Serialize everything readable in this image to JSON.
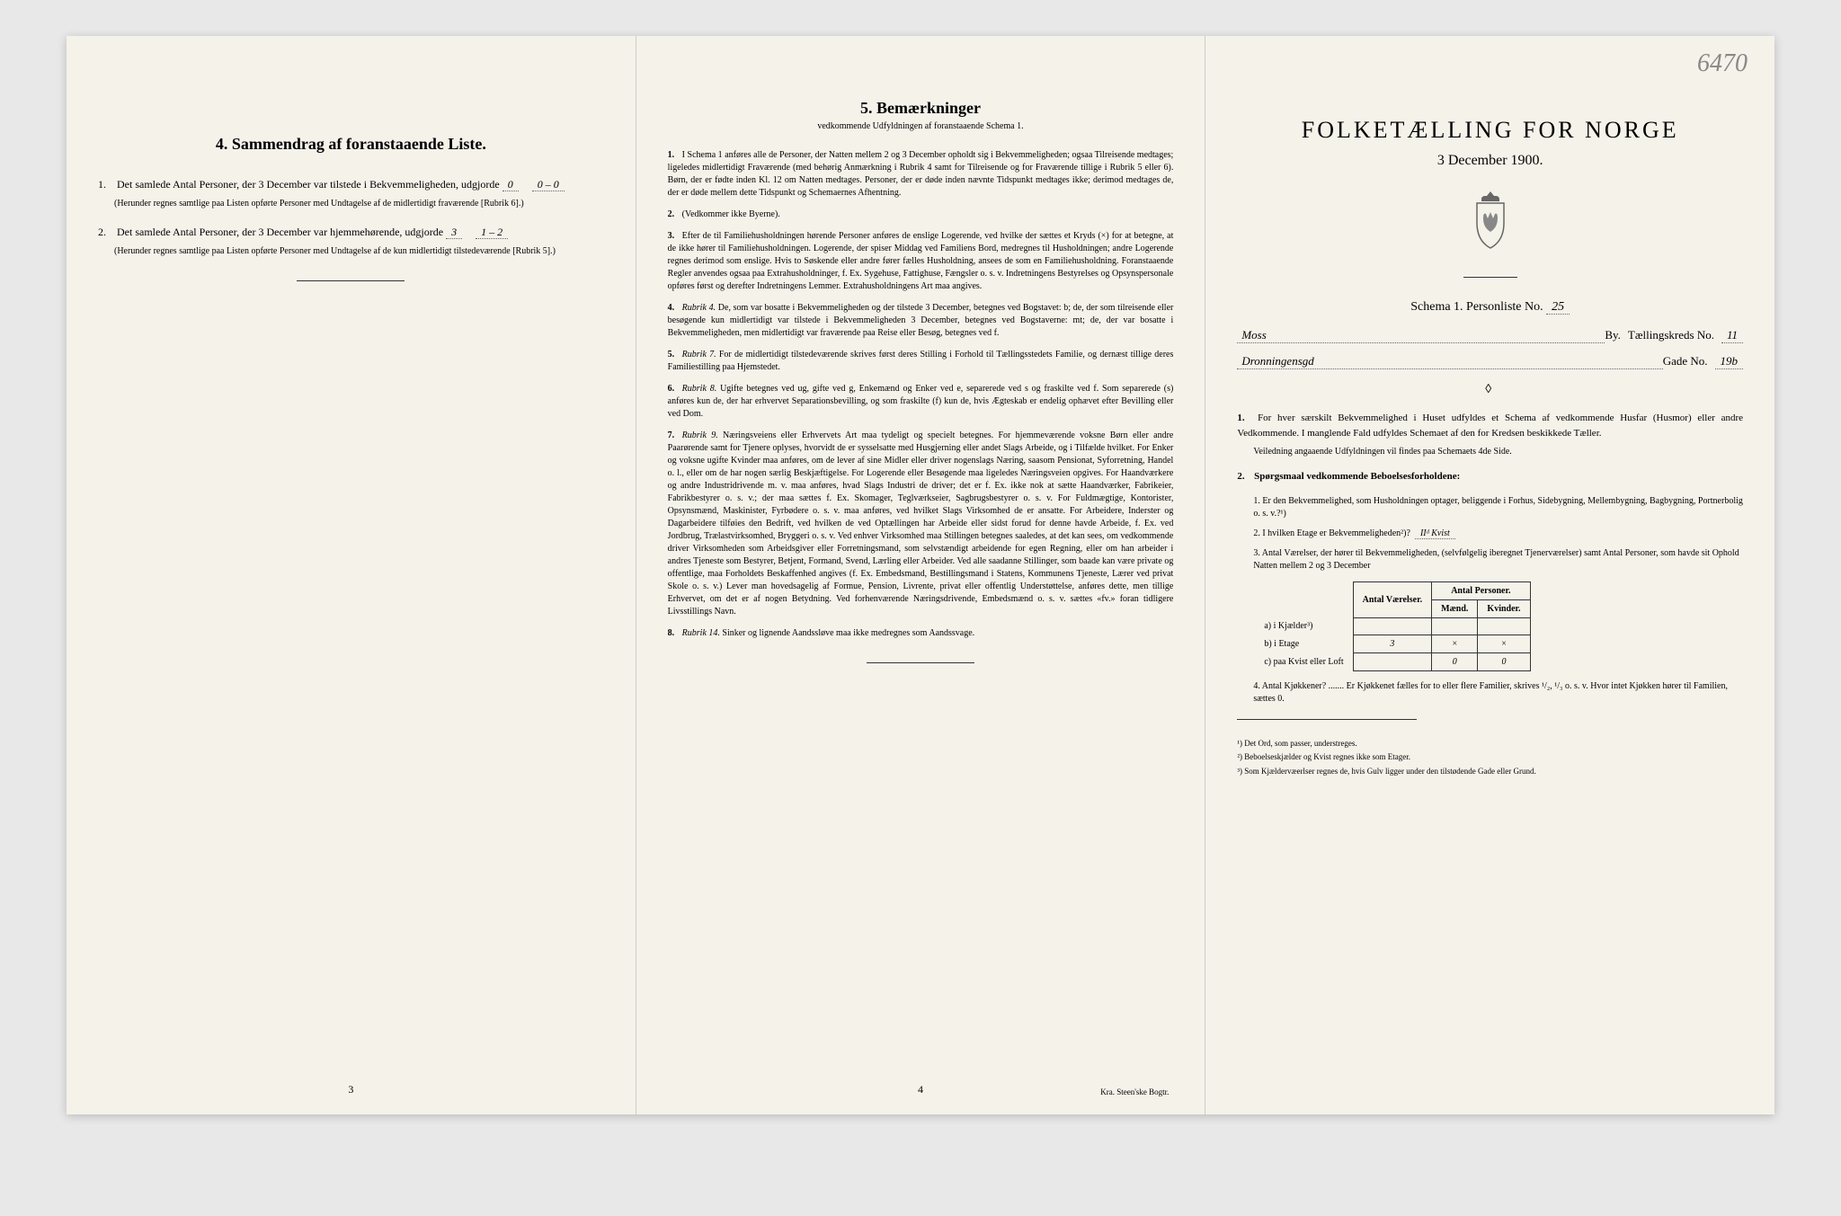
{
  "annotation": "6470",
  "page3": {
    "heading": "4.  Sammendrag af foranstaaende Liste.",
    "item1": {
      "text": "Det samlede Antal Personer, der 3 December var tilstede i Bekvemmeligheden, udgjorde",
      "value": "0",
      "breakdown": "0 – 0",
      "note": "(Herunder regnes samtlige paa Listen opførte Personer med Undtagelse af de midlertidigt fraværende [Rubrik 6].)"
    },
    "item2": {
      "text": "Det samlede Antal Personer, der 3 December var hjemmehørende, udgjorde",
      "value": "3",
      "breakdown": "1 – 2",
      "note": "(Herunder regnes samtlige paa Listen opførte Personer med Undtagelse af de kun midlertidigt tilstedeværende [Rubrik 5].)"
    },
    "pageNum": "3"
  },
  "page4": {
    "heading": "5.  Bemærkninger",
    "subheading": "vedkommende Udfyldningen af foranstaaende Schema 1.",
    "remarks": [
      {
        "num": "1.",
        "text": "I Schema 1 anføres alle de Personer, der Natten mellem 2 og 3 December opholdt sig i Bekvemmeligheden; ogsaa Tilreisende medtages; ligeledes midlertidigt Fraværende (med behørig Anmærkning i Rubrik 4 samt for Tilreisende og for Fraværende tillige i Rubrik 5 eller 6). Børn, der er fødte inden Kl. 12 om Natten medtages. Personer, der er døde inden nævnte Tidspunkt medtages ikke; derimod medtages de, der er døde mellem dette Tidspunkt og Schemaernes Afhentning."
      },
      {
        "num": "2.",
        "text": "(Vedkommer ikke Byerne)."
      },
      {
        "num": "3.",
        "text": "Efter de til Familiehusholdningen hørende Personer anføres de enslige Logerende, ved hvilke der sættes et Kryds (×) for at betegne, at de ikke hører til Familiehusholdningen. Logerende, der spiser Middag ved Familiens Bord, medregnes til Husholdningen; andre Logerende regnes derimod som enslige. Hvis to Søskende eller andre fører fælles Husholdning, ansees de som en Familiehusholdning. Foranstaaende Regler anvendes ogsaa paa Extrahusholdninger, f. Ex. Sygehuse, Fattighuse, Fængsler o. s. v. Indretningens Bestyrelses og Opsynspersonale opføres først og derefter Indretningens Lemmer. Extrahusholdningens Art maa angives."
      },
      {
        "num": "4.",
        "title": "Rubrik 4.",
        "text": "De, som var bosatte i Bekvemmeligheden og der tilstede 3 December, betegnes ved Bogstavet: b; de, der som tilreisende eller besøgende kun midlertidigt var tilstede i Bekvemmeligheden 3 December, betegnes ved Bogstaverne: mt; de, der var bosatte i Bekvemmeligheden, men midlertidigt var fraværende paa Reise eller Besøg, betegnes ved f."
      },
      {
        "num": "5.",
        "title": "Rubrik 7.",
        "text": "For de midlertidigt tilstedeværende skrives først deres Stilling i Forhold til Tællingsstedets Familie, og dernæst tillige deres Familiestilling paa Hjemstedet."
      },
      {
        "num": "6.",
        "title": "Rubrik 8.",
        "text": "Ugifte betegnes ved ug, gifte ved g, Enkemænd og Enker ved e, separerede ved s og fraskilte ved f. Som separerede (s) anføres kun de, der har erhvervet Separationsbevilling, og som fraskilte (f) kun de, hvis Ægteskab er endelig ophævet efter Bevilling eller ved Dom."
      },
      {
        "num": "7.",
        "title": "Rubrik 9.",
        "text": "Næringsveiens eller Erhvervets Art maa tydeligt og specielt betegnes. For hjemmeværende voksne Børn eller andre Paarørende samt for Tjenere oplyses, hvorvidt de er sysselsatte med Husgjerning eller andet Slags Arbeide, og i Tilfælde hvilket. For Enker og voksne ugifte Kvinder maa anføres, om de lever af sine Midler eller driver nogenslags Næring, saasom Pensionat, Syforretning, Handel o. l., eller om de har nogen særlig Beskjæftigelse. For Logerende eller Besøgende maa ligeledes Næringsveien opgives. For Haandværkere og andre Industridrivende m. v. maa anføres, hvad Slags Industri de driver; det er f. Ex. ikke nok at sætte Haandværker, Fabrikeier, Fabrikbestyrer o. s. v.; der maa sættes f. Ex. Skomager, Teglværkseier, Sagbrugsbestyrer o. s. v. For Fuldmægtige, Kontorister, Opsynsmænd, Maskinister, Fyrbødere o. s. v. maa anføres, ved hvilket Slags Virksomhed de er ansatte. For Arbeidere, Inderster og Dagarbeidere tilføies den Bedrift, ved hvilken de ved Optællingen har Arbeide eller sidst forud for denne havde Arbeide, f. Ex. ved Jordbrug, Trælastvirksomhed, Bryggeri o. s. v. Ved enhver Virksomhed maa Stillingen betegnes saaledes, at det kan sees, om vedkommende driver Virksomheden som Arbeidsgiver eller Forretningsmand, som selvstændigt arbeidende for egen Regning, eller om han arbeider i andres Tjeneste som Bestyrer, Betjent, Formand, Svend, Lærling eller Arbeider. Ved alle saadanne Stillinger, som baade kan være private og offentlige, maa Forholdets Beskaffenhed angives (f. Ex. Embedsmand, Bestillingsmand i Statens, Kommunens Tjeneste, Lærer ved privat Skole o. s. v.) Lever man hovedsagelig af Formue, Pension, Livrente, privat eller offentlig Understøttelse, anføres dette, men tillige Erhvervet, om det er af nogen Betydning. Ved forhenværende Næringsdrivende, Embedsmænd o. s. v. sættes «fv.» foran tidligere Livsstillings Navn."
      },
      {
        "num": "8.",
        "title": "Rubrik 14.",
        "text": "Sinker og lignende Aandssløve maa ikke medregnes som Aandssvage."
      }
    ],
    "pageNum": "4",
    "printer": "Kra.  Steen'ske Bogtr."
  },
  "page1": {
    "title": "FOLKETÆLLING FOR NORGE",
    "date": "3 December 1900.",
    "schemaLabel": "Schema 1.   Personliste No.",
    "schemaNo": "25",
    "cityLabel": "By.",
    "cityValue": "Moss",
    "kredsLabel": "Tællingskreds No.",
    "kredsValue": "11",
    "streetValue": "Dronningensgd",
    "gadeLabel": "Gade No.",
    "gadeValue": "19b",
    "instruction1": "For hver særskilt Bekvemmelighed i Huset udfyldes et Schema af vedkommende Husfar (Husmor) eller andre Vedkommende. I manglende Fald udfyldes Schemaet af den for Kredsen beskikkede Tæller.",
    "instruction1note": "Veiledning angaaende Udfyldningen vil findes paa Schemaets 4de Side.",
    "q2heading": "Spørgsmaal vedkommende Beboelsesforholdene:",
    "q2_1": "Er den Bekvemmelighed, som Husholdningen optager, beliggende i Forhus, Sidebygning, Mellembygning, Bagbygning, Portnerbolig o. s. v.?¹)",
    "q2_2": "I hvilken Etage er Bekvemmeligheden²)?",
    "q2_2value": "IIᵈ Kvist",
    "q2_3": "Antal Værelser, der hører til Bekvemmeligheden, (selvfølgelig iberegnet Tjenerværelser) samt Antal Personer, som havde sit Ophold Natten mellem 2 og 3 December",
    "table": {
      "h1": "Antal Værelser.",
      "h2": "Antal Personer.",
      "h2a": "Mænd.",
      "h2b": "Kvinder.",
      "r1label": "a) i Kjælder³)",
      "r2label": "b) i Etage",
      "r3label": "c) paa Kvist eller Loft",
      "r2v1": "3",
      "r2v2": "×",
      "r2v3": "×",
      "r3v2": "0",
      "r3v3": "0"
    },
    "q2_4": "Antal Kjøkkener? ....... Er Kjøkkenet fælles for to eller flere Familier, skrives ¹/₂, ¹/₃ o. s. v.  Hvor intet Kjøkken hører til Familien, sættes 0.",
    "footnotes": [
      "¹) Det Ord, som passer, understreges.",
      "²) Beboelseskjælder og Kvist regnes ikke som Etager.",
      "³) Som Kjældervæerlser regnes de, hvis Gulv ligger under den tilstødende Gade eller Grund."
    ]
  }
}
